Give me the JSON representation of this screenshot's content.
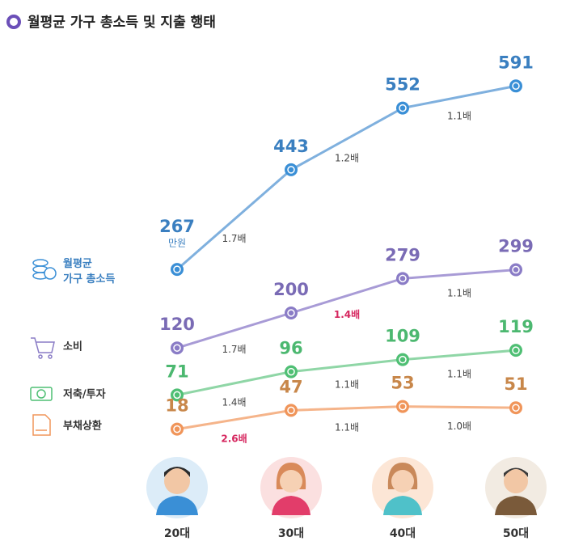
{
  "chart_data": {
    "type": "line",
    "title": "월평균 가구 총소득 및 지출 행태",
    "categories": [
      "20대",
      "30대",
      "40대",
      "50대"
    ],
    "unit": "만원",
    "series": [
      {
        "name": "월평균 가구 총소득",
        "color": "#3a8fd6",
        "values": [
          267,
          443,
          552,
          591
        ],
        "ratio_labels": [
          "1.7배",
          "1.2배",
          "1.1배"
        ],
        "highlight_ratio": null
      },
      {
        "name": "소비",
        "color": "#8a7cc6",
        "values": [
          120,
          200,
          279,
          299
        ],
        "ratio_labels": [
          "1.7배",
          "1.4배",
          "1.1배"
        ],
        "highlight_ratio": 1
      },
      {
        "name": "저축/투자",
        "color": "#4fbf74",
        "values": [
          71,
          96,
          109,
          119
        ],
        "ratio_labels": [
          "1.4배",
          "1.1배",
          "1.1배"
        ],
        "highlight_ratio": null
      },
      {
        "name": "부채상환",
        "color": "#f0955a",
        "values": [
          18,
          47,
          53,
          51
        ],
        "ratio_labels": [
          "2.6배",
          "1.1배",
          "1.0배"
        ],
        "highlight_ratio": 0
      }
    ]
  }
}
